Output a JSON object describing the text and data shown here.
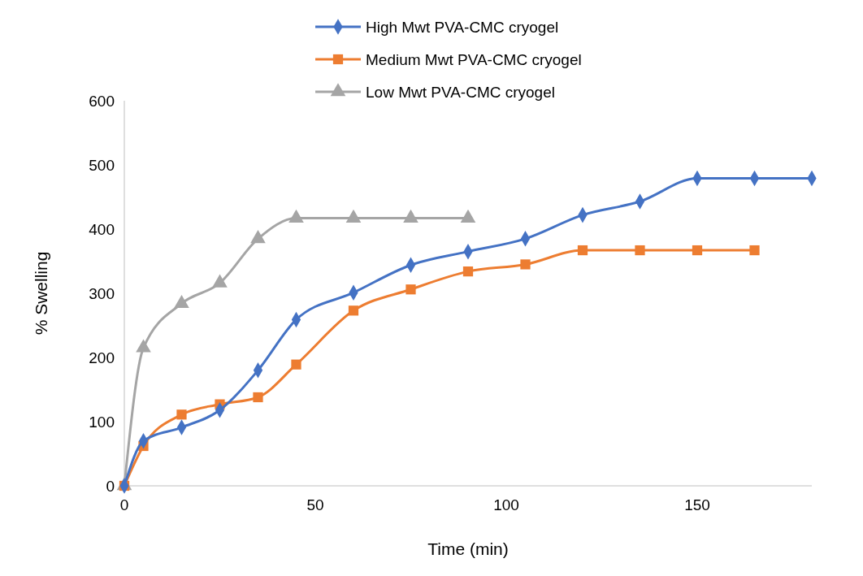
{
  "chart_data": {
    "type": "line",
    "xlabel": "Time (min)",
    "ylabel": "% Swelling",
    "xlim": [
      0,
      180
    ],
    "xticks": [
      0,
      50,
      100,
      150
    ],
    "ylim": [
      0,
      600
    ],
    "yticks": [
      0,
      100,
      200,
      300,
      400,
      500,
      600
    ],
    "grid": false,
    "legend": "top",
    "line_style": "solid",
    "series": [
      {
        "name": "High Mwt PVA-CMC cryogel",
        "color": "#4472c4",
        "marker": "diamond",
        "x": [
          0,
          5,
          15,
          25,
          35,
          45,
          60,
          75,
          90,
          105,
          120,
          135,
          150,
          165,
          180
        ],
        "values": [
          0,
          70,
          91,
          118,
          180,
          259,
          301,
          344,
          365,
          385,
          422,
          443,
          479,
          479,
          479
        ]
      },
      {
        "name": "Medium Mwt PVA-CMC cryogel",
        "color": "#ed7d31",
        "marker": "square",
        "x": [
          0,
          5,
          15,
          25,
          35,
          45,
          60,
          75,
          90,
          105,
          120,
          135,
          150,
          165
        ],
        "values": [
          0,
          62,
          111,
          127,
          138,
          189,
          273,
          306,
          334,
          345,
          367,
          367,
          367,
          367
        ]
      },
      {
        "name": "Low Mwt PVA-CMC cryogel",
        "color": "#a5a5a5",
        "marker": "triangle",
        "x": [
          0,
          5,
          15,
          25,
          35,
          45,
          60,
          75,
          90
        ],
        "values": [
          0,
          215,
          284,
          316,
          385,
          417,
          417,
          417,
          417
        ]
      }
    ]
  }
}
